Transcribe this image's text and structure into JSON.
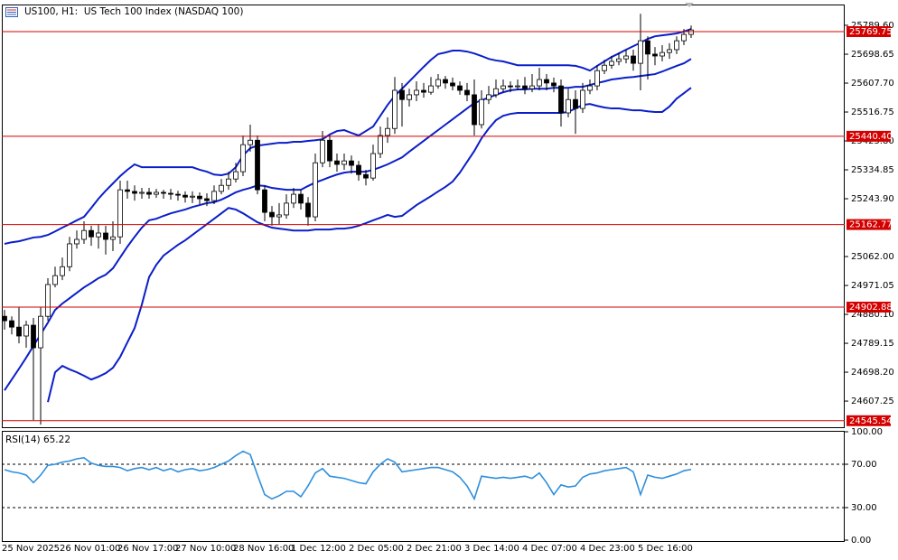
{
  "chart_data": [
    {
      "type": "candlestick",
      "title": "US100, H1:  US Tech 100 Index (NASDAQ 100)",
      "categories": [
        "25 Nov 2025",
        null,
        null,
        null,
        null,
        null,
        null,
        null,
        "26 Nov 01:00",
        null,
        null,
        null,
        null,
        null,
        null,
        null,
        "26 Nov 17:00",
        null,
        null,
        null,
        null,
        null,
        null,
        null,
        "27 Nov 10:00",
        null,
        null,
        null,
        null,
        null,
        null,
        null,
        "28 Nov 16:00",
        null,
        null,
        null,
        null,
        null,
        null,
        null,
        "1 Dec 12:00",
        null,
        null,
        null,
        null,
        null,
        null,
        null,
        "2 Dec 05:00",
        null,
        null,
        null,
        null,
        null,
        null,
        null,
        "2 Dec 21:00",
        null,
        null,
        null,
        null,
        null,
        null,
        null,
        "3 Dec 14:00",
        null,
        null,
        null,
        null,
        null,
        null,
        null,
        "4 Dec 07:00",
        null,
        null,
        null,
        null,
        null,
        null,
        null,
        "4 Dec 23:00",
        null,
        null,
        null,
        null,
        null,
        null,
        null,
        "5 Dec 16:00",
        null,
        null,
        null,
        null,
        null,
        null,
        null
      ],
      "ohlc": [
        [
          24874,
          24894,
          24832,
          24860
        ],
        [
          24860,
          24874,
          24817,
          24840
        ],
        [
          24840,
          24903,
          24789,
          24812
        ],
        [
          24812,
          24860,
          24775,
          24846
        ],
        [
          24846,
          24869,
          24547,
          24775
        ],
        [
          24775,
          24903,
          24533,
          24874
        ],
        [
          24874,
          24994,
          24860,
          24974
        ],
        [
          24974,
          25030,
          24965,
          25002
        ],
        [
          25002,
          25059,
          24988,
          25030
        ],
        [
          25030,
          25124,
          25016,
          25102
        ],
        [
          25102,
          25144,
          25087,
          25116
        ],
        [
          25116,
          25173,
          25102,
          25144
        ],
        [
          25144,
          25159,
          25096,
          25124
        ],
        [
          25124,
          25164,
          25087,
          25136
        ],
        [
          25136,
          25159,
          25068,
          25116
        ],
        [
          25116,
          25173,
          25079,
          25124
        ],
        [
          25124,
          25301,
          25102,
          25272
        ],
        [
          25272,
          25301,
          25244,
          25267
        ],
        [
          25267,
          25286,
          25238,
          25261
        ],
        [
          25261,
          25278,
          25244,
          25264
        ],
        [
          25264,
          25278,
          25244,
          25258
        ],
        [
          25258,
          25275,
          25247,
          25264
        ],
        [
          25264,
          25272,
          25244,
          25261
        ],
        [
          25261,
          25275,
          25241,
          25258
        ],
        [
          25258,
          25269,
          25238,
          25255
        ],
        [
          25255,
          25267,
          25232,
          25249
        ],
        [
          25249,
          25267,
          25230,
          25252
        ],
        [
          25252,
          25264,
          25227,
          25244
        ],
        [
          25244,
          25261,
          25221,
          25238
        ],
        [
          25238,
          25286,
          25227,
          25267
        ],
        [
          25267,
          25306,
          25258,
          25286
        ],
        [
          25286,
          25329,
          25272,
          25306
        ],
        [
          25306,
          25357,
          25295,
          25329
        ],
        [
          25329,
          25443,
          25315,
          25414
        ],
        [
          25414,
          25477,
          25392,
          25428
        ],
        [
          25428,
          25443,
          25258,
          25272
        ],
        [
          25272,
          25286,
          25173,
          25201
        ],
        [
          25201,
          25221,
          25159,
          25187
        ],
        [
          25187,
          25230,
          25164,
          25193
        ],
        [
          25193,
          25258,
          25181,
          25230
        ],
        [
          25230,
          25278,
          25215,
          25258
        ],
        [
          25258,
          25272,
          25210,
          25230
        ],
        [
          25230,
          25249,
          25159,
          25187
        ],
        [
          25187,
          25386,
          25173,
          25357
        ],
        [
          25357,
          25457,
          25343,
          25428
        ],
        [
          25428,
          25443,
          25343,
          25363
        ],
        [
          25363,
          25386,
          25329,
          25352
        ],
        [
          25352,
          25386,
          25335,
          25363
        ],
        [
          25363,
          25380,
          25323,
          25349
        ],
        [
          25349,
          25363,
          25301,
          25320
        ],
        [
          25320,
          25335,
          25286,
          25309
        ],
        [
          25309,
          25414,
          25301,
          25386
        ],
        [
          25386,
          25471,
          25372,
          25443
        ],
        [
          25443,
          25500,
          25420,
          25465
        ],
        [
          25465,
          25627,
          25448,
          25585
        ],
        [
          25585,
          25608,
          25471,
          25556
        ],
        [
          25556,
          25590,
          25534,
          25571
        ],
        [
          25571,
          25613,
          25551,
          25585
        ],
        [
          25585,
          25608,
          25562,
          25579
        ],
        [
          25579,
          25627,
          25571,
          25599
        ],
        [
          25599,
          25636,
          25590,
          25619
        ],
        [
          25619,
          25630,
          25590,
          25608
        ],
        [
          25608,
          25625,
          25585,
          25599
        ],
        [
          25599,
          25613,
          25571,
          25585
        ],
        [
          25585,
          25608,
          25551,
          25571
        ],
        [
          25571,
          25619,
          25443,
          25477
        ],
        [
          25477,
          25585,
          25465,
          25556
        ],
        [
          25556,
          25599,
          25542,
          25571
        ],
        [
          25571,
          25619,
          25562,
          25590
        ],
        [
          25590,
          25619,
          25579,
          25599
        ],
        [
          25599,
          25613,
          25579,
          25596
        ],
        [
          25596,
          25619,
          25585,
          25599
        ],
        [
          25599,
          25627,
          25573,
          25590
        ],
        [
          25590,
          25636,
          25579,
          25599
        ],
        [
          25599,
          25656,
          25585,
          25619
        ],
        [
          25619,
          25636,
          25585,
          25608
        ],
        [
          25608,
          25625,
          25579,
          25599
        ],
        [
          25599,
          25619,
          25471,
          25514
        ],
        [
          25514,
          25590,
          25500,
          25556
        ],
        [
          25556,
          25585,
          25448,
          25528
        ],
        [
          25528,
          25608,
          25514,
          25585
        ],
        [
          25585,
          25619,
          25573,
          25599
        ],
        [
          25599,
          25664,
          25585,
          25647
        ],
        [
          25647,
          25681,
          25636,
          25664
        ],
        [
          25664,
          25693,
          25653,
          25676
        ],
        [
          25676,
          25704,
          25664,
          25684
        ],
        [
          25684,
          25713,
          25670,
          25693
        ],
        [
          25693,
          25713,
          25647,
          25670
        ],
        [
          25670,
          25826,
          25585,
          25741
        ],
        [
          25741,
          25755,
          25619,
          25699
        ],
        [
          25699,
          25721,
          25664,
          25693
        ],
        [
          25693,
          25727,
          25676,
          25704
        ],
        [
          25704,
          25733,
          25684,
          25713
        ],
        [
          25713,
          25755,
          25699,
          25741
        ],
        [
          25741,
          25778,
          25727,
          25761
        ],
        [
          25761,
          25789,
          25750,
          25775
        ]
      ],
      "bull_color": "#ffffff",
      "bear_color": "#000000",
      "wick_color": "#000000",
      "series": [
        {
          "color": "#0a1ec8",
          "values": [
            25102,
            25107,
            25110,
            25116,
            25122,
            25124,
            25130,
            25141,
            25153,
            25164,
            25176,
            25187,
            25215,
            25244,
            25269,
            25292,
            25315,
            25335,
            25352,
            25343,
            25343,
            25343,
            25343,
            25343,
            25343,
            25343,
            25343,
            25335,
            25329,
            25320,
            25318,
            25323,
            25343,
            25380,
            25403,
            25411,
            25414,
            25417,
            25420,
            25420,
            25423,
            25423,
            25426,
            25428,
            25431,
            25446,
            25457,
            25460,
            25451,
            25443,
            25457,
            25471,
            25505,
            25539,
            25568,
            25590,
            25613,
            25636,
            25659,
            25681,
            25699,
            25704,
            25710,
            25710,
            25707,
            25701,
            25693,
            25684,
            25679,
            25676,
            25670,
            25664,
            25664,
            25664,
            25664,
            25664,
            25664,
            25664,
            25664,
            25662,
            25656,
            25647,
            25662,
            25676,
            25690,
            25701,
            25713,
            25724,
            25735,
            25747,
            25755,
            25758,
            25761,
            25764,
            25770,
            25778
          ]
        },
        {
          "color": "#0a1ec8",
          "values": [
            24641,
            24675,
            24709,
            24744,
            24781,
            24817,
            24854,
            24894,
            24914,
            24931,
            24948,
            24965,
            24979,
            24994,
            25005,
            25025,
            25059,
            25093,
            25124,
            25153,
            25176,
            25181,
            25190,
            25198,
            25204,
            25210,
            25218,
            25224,
            25230,
            25233,
            25241,
            25252,
            25264,
            25272,
            25278,
            25286,
            25284,
            25278,
            25275,
            25272,
            25272,
            25272,
            25284,
            25295,
            25303,
            25312,
            25320,
            25326,
            25329,
            25329,
            25329,
            25335,
            25343,
            25352,
            25363,
            25374,
            25392,
            25409,
            25426,
            25443,
            25460,
            25477,
            25494,
            25511,
            25528,
            25545,
            25554,
            25562,
            25571,
            25579,
            25585,
            25588,
            25588,
            25590,
            25590,
            25590,
            25593,
            25593,
            25593,
            25596,
            25596,
            25602,
            25608,
            25613,
            25619,
            25622,
            25625,
            25627,
            25630,
            25633,
            25636,
            25644,
            25653,
            25662,
            25670,
            25684
          ]
        },
        {
          "color": "#0a1ec8",
          "values": [
            null,
            null,
            null,
            null,
            null,
            null,
            24604,
            24698,
            24718,
            24707,
            24698,
            24687,
            24675,
            24684,
            24695,
            24712,
            24746,
            24792,
            24837,
            24911,
            24997,
            25036,
            25065,
            25082,
            25099,
            25113,
            25130,
            25147,
            25164,
            25181,
            25198,
            25215,
            25210,
            25198,
            25184,
            25170,
            25161,
            25153,
            25150,
            25147,
            25144,
            25144,
            25144,
            25147,
            25147,
            25147,
            25150,
            25150,
            25153,
            25159,
            25167,
            25176,
            25184,
            25193,
            25187,
            25190,
            25207,
            25224,
            25238,
            25252,
            25267,
            25281,
            25298,
            25326,
            25360,
            25394,
            25434,
            25465,
            25491,
            25505,
            25511,
            25514,
            25514,
            25514,
            25514,
            25514,
            25514,
            25514,
            25517,
            25528,
            25539,
            25542,
            25536,
            25531,
            25528,
            25528,
            25525,
            25522,
            25522,
            25519,
            25517,
            25517,
            25534,
            25559,
            25576,
            25593
          ]
        }
      ],
      "ylim": [
        24525,
        25855
      ],
      "yticks": [
        {
          "value": 25789.6,
          "label": "25789.60"
        },
        25698.65,
        {
          "value": 25607.7,
          "label": "25607.70"
        },
        25516.75,
        {
          "value": 25425.8,
          "label": "25425.80"
        },
        25334.85,
        {
          "value": 25243.9,
          "label": "25243.90"
        },
        {
          "value": 25062,
          "label": "25062.00"
        },
        24971.05,
        {
          "value": 24880.1,
          "label": "24880.10"
        },
        24789.15,
        {
          "value": 24698.2,
          "label": "24698.20"
        },
        24607.25
      ],
      "levels": [
        25769.75,
        {
          "value": 25440.4,
          "label": "25440.40"
        },
        25162.77,
        24902.88,
        24545.54
      ],
      "level_color": "#d40000"
    },
    {
      "type": "line",
      "title": "RSI(14) 65.22",
      "series": [
        {
          "color": "#2f8fdc",
          "values": [
            65,
            63,
            62,
            60,
            53,
            60,
            69,
            70,
            72,
            73,
            75,
            76,
            71,
            69,
            68,
            68,
            67,
            64,
            66,
            67,
            65,
            67,
            64,
            66,
            63,
            65,
            66,
            64,
            65,
            67,
            70,
            73,
            78,
            82,
            79,
            60,
            42,
            38,
            41,
            45,
            45,
            40,
            50,
            62,
            66,
            59,
            58,
            57,
            55,
            53,
            52,
            63,
            70,
            75,
            72,
            63,
            64,
            65,
            66,
            67,
            67,
            65,
            63,
            58,
            50,
            38,
            59,
            58,
            57,
            58,
            57,
            58,
            59,
            57,
            62,
            53,
            42,
            51,
            49,
            50,
            58,
            61,
            62,
            64,
            65,
            66,
            67,
            63,
            42,
            60,
            58,
            57,
            59,
            61,
            64,
            65.22
          ]
        }
      ],
      "ylim": [
        0,
        100
      ],
      "yticks": [
        {
          "value": 100,
          "label": "100.00"
        },
        {
          "value": 70,
          "label": "70.00"
        },
        {
          "value": 30,
          "label": "30.00"
        },
        {
          "value": 0,
          "label": "0.00"
        }
      ],
      "grid": "dashed"
    }
  ]
}
